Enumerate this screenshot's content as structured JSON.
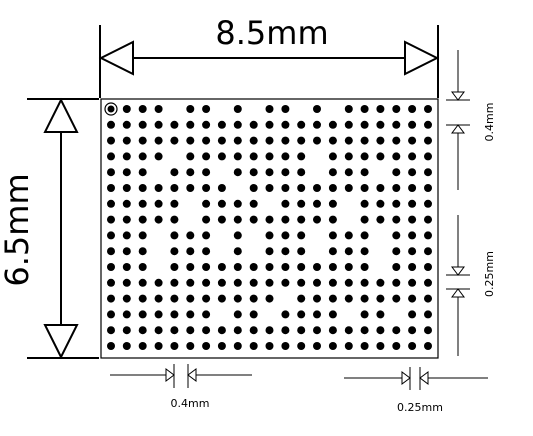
{
  "diagram": {
    "width_label": "8.5mm",
    "height_label": "6.5mm",
    "pitch_right_label": "0.4mm",
    "gap_right_label": "0.25mm",
    "pitch_bottom_label": "0.4mm",
    "gap_bottom_label": "0.25mm"
  },
  "ball_grid": {
    "columns": 21,
    "rows": 16,
    "pin1_marker": true,
    "rows_pattern": [
      "X11101101011010111111",
      "111111111111111111111",
      "111111111111111111111",
      "111101111111101111111",
      "111011101111101110111",
      "111111110111111111111",
      "111110111101111011111",
      "111110111111111011111",
      "111011101011101110111",
      "111011101011101110111",
      "111011111111111110111",
      "111111111111111111111",
      "111111111110111111111",
      "111111101101111011011",
      "111111111111111111111",
      "111111111111111111111"
    ]
  }
}
